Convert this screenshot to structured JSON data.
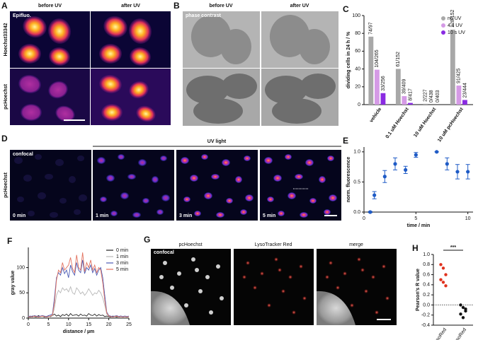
{
  "figure": {
    "A": {
      "label": "A",
      "inset": "Epifluo.",
      "cols": [
        "before UV",
        "after UV"
      ],
      "rows": [
        "Hoechst33342",
        "pcHoechst"
      ]
    },
    "B": {
      "label": "B",
      "inset": "phase contrast",
      "cols": [
        "before UV",
        "after UV"
      ]
    },
    "D": {
      "label": "D",
      "inset": "confocal",
      "bracket": "UV light",
      "row": "pcHoechst",
      "times": [
        "0 min",
        "1 min",
        "3 min",
        "5 min"
      ]
    },
    "G": {
      "label": "G",
      "inset": "confocal",
      "cols": [
        "pcHoechst",
        "LysoTracker Red",
        "merge"
      ]
    }
  },
  "chart_data": [
    {
      "type": "bar",
      "panel": "C",
      "y_label": "dividing cells in 24 h / %",
      "categories": [
        "vehicle",
        "0.1 uM Hoechst",
        "10 uM Hoechst",
        "10 uM pcHoechst"
      ],
      "series": [
        {
          "name": "no UV",
          "color": "#a8a8a8",
          "values": [
            76.3,
            40.1,
            0.9,
            84.2
          ],
          "value_labels": [
            "74/97",
            "61/152",
            "2/227",
            "128/152"
          ]
        },
        {
          "name": "4 s UV",
          "color": "#d59ae6",
          "values": [
            39.2,
            9.5,
            0,
            21.4
          ],
          "value_labels": [
            "104/265",
            "39/409",
            "0/438",
            "91/425"
          ]
        },
        {
          "name": "10 s UV",
          "color": "#8a2be2",
          "values": [
            12.9,
            1.9,
            0,
            5.2
          ],
          "value_labels": [
            "33/256",
            "8/417",
            "0/403",
            "23/444"
          ]
        }
      ],
      "ylim": [
        0,
        100
      ],
      "yticks": [
        0,
        20,
        40,
        60,
        80,
        100
      ],
      "legend": "top-right"
    },
    {
      "type": "errorbar",
      "panel": "E",
      "y_label": "norm. fluorescence",
      "x_label": "time / min",
      "color": "#1f5bc6",
      "x": [
        0.6,
        1,
        2,
        3,
        4,
        5,
        7,
        8,
        9,
        10
      ],
      "values": [
        0.0,
        0.28,
        0.59,
        0.8,
        0.7,
        0.95,
        1.0,
        0.8,
        0.67,
        0.67
      ],
      "errors": [
        0.01,
        0.06,
        0.1,
        0.1,
        0.06,
        0.04,
        0.0,
        0.1,
        0.12,
        0.12
      ],
      "xlim": [
        0,
        10.5
      ],
      "xticks": [
        0,
        5,
        10
      ],
      "ylim": [
        0,
        1.08
      ],
      "yticks": [
        {
          "value": 0,
          "label": "0.0"
        },
        {
          "value": 0.5,
          "label": "0.5"
        },
        {
          "value": 1,
          "label": "1.0"
        }
      ]
    },
    {
      "type": "line",
      "panel": "F",
      "y_label": "gray value",
      "x_label": "distance / µm",
      "legend": "top-right",
      "x": [
        0,
        0.5,
        1,
        1.5,
        2,
        2.5,
        3,
        3.5,
        4,
        4.5,
        5,
        5.5,
        6,
        6.5,
        7,
        7.5,
        8,
        8.5,
        9,
        9.5,
        10,
        10.5,
        11,
        11.5,
        12,
        12.5,
        13,
        13.5,
        14,
        14.5,
        15,
        15.5,
        16,
        16.5,
        17,
        17.5,
        18,
        18.5,
        19,
        19.5,
        20,
        20.5,
        21,
        21.5,
        22,
        22.5,
        23,
        23.5,
        24,
        24.5,
        25
      ],
      "series": [
        {
          "name": "0 min",
          "color": "#222222",
          "values": [
            3,
            2,
            4,
            3,
            2,
            5,
            3,
            4,
            2,
            3,
            4,
            3,
            5,
            8,
            4,
            6,
            3,
            7,
            5,
            8,
            4,
            9,
            5,
            6,
            7,
            4,
            8,
            5,
            6,
            4,
            9,
            6,
            5,
            8,
            4,
            7,
            5,
            6,
            3,
            4,
            3,
            2,
            4,
            3,
            2,
            3,
            4,
            2,
            3,
            2,
            3
          ]
        },
        {
          "name": "1 min",
          "color": "#b8b8b8",
          "values": [
            2,
            3,
            2,
            4,
            3,
            2,
            3,
            4,
            3,
            2,
            3,
            4,
            5,
            20,
            45,
            55,
            50,
            60,
            55,
            58,
            52,
            62,
            50,
            47,
            60,
            55,
            48,
            52,
            45,
            50,
            58,
            52,
            45,
            50,
            48,
            55,
            50,
            40,
            25,
            8,
            4,
            3,
            2,
            3,
            4,
            2,
            3,
            2,
            3,
            2,
            3
          ]
        },
        {
          "name": "3 min",
          "color": "#4b5bb5",
          "values": [
            3,
            4,
            3,
            5,
            4,
            3,
            4,
            5,
            4,
            3,
            5,
            6,
            8,
            40,
            80,
            90,
            85,
            100,
            88,
            95,
            80,
            105,
            92,
            85,
            110,
            95,
            90,
            115,
            88,
            100,
            95,
            105,
            90,
            98,
            85,
            95,
            100,
            80,
            45,
            12,
            5,
            4,
            3,
            4,
            5,
            3,
            4,
            3,
            4,
            3,
            4
          ]
        },
        {
          "name": "5 min",
          "color": "#e2725f",
          "values": [
            2,
            3,
            2,
            4,
            3,
            2,
            3,
            4,
            3,
            2,
            3,
            4,
            6,
            30,
            75,
            95,
            90,
            110,
            95,
            100,
            105,
            120,
            98,
            90,
            125,
            100,
            95,
            130,
            92,
            110,
            100,
            115,
            95,
            105,
            90,
            100,
            95,
            70,
            35,
            10,
            4,
            3,
            2,
            3,
            4,
            2,
            3,
            2,
            3,
            2,
            3
          ]
        }
      ],
      "xlim": [
        0,
        25
      ],
      "xticks": [
        0,
        5,
        10,
        15,
        20,
        25
      ],
      "ylim": [
        0,
        140
      ],
      "yticks": [
        0,
        50,
        100
      ]
    },
    {
      "type": "strip",
      "panel": "H",
      "y_label": "Pearson's R value",
      "annotation": "***",
      "categories": [
        "LysoRed",
        "no LysoRed"
      ],
      "colors": [
        "#e0321e",
        "#111111"
      ],
      "values": [
        [
          0.8,
          0.73,
          0.6,
          0.5,
          0.45,
          0.38
        ],
        [
          0.0,
          -0.05,
          -0.12,
          -0.18,
          -0.25,
          -0.08
        ]
      ],
      "ylim": [
        -0.4,
        1.0
      ],
      "yticks": [
        {
          "value": -0.4,
          "label": "-0.4"
        },
        {
          "value": -0.2,
          "label": "-0.2"
        },
        {
          "value": 0,
          "label": "0.0"
        },
        {
          "value": 0.2,
          "label": "0.2"
        },
        {
          "value": 0.4,
          "label": "0.4"
        },
        {
          "value": 0.6,
          "label": "0.6"
        },
        {
          "value": 0.8,
          "label": "0.8"
        },
        {
          "value": 1,
          "label": "1.0"
        }
      ]
    }
  ]
}
